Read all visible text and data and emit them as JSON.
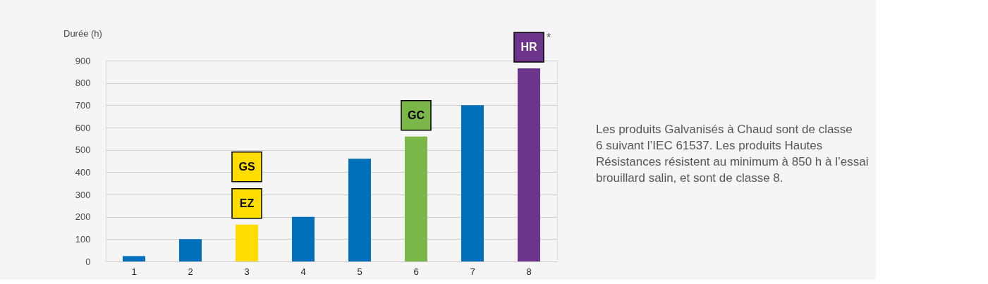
{
  "chart_data": {
    "type": "bar",
    "ylabel": "Durée (h)",
    "categories": [
      "1",
      "2",
      "3",
      "4",
      "5",
      "6",
      "7",
      "8"
    ],
    "values": [
      24,
      100,
      165,
      200,
      460,
      560,
      700,
      865
    ],
    "colors": [
      "#0070ba",
      "#0070ba",
      "#ffdd00",
      "#0070ba",
      "#0070ba",
      "#7ab648",
      "#0070ba",
      "#6c348b"
    ],
    "ylim": [
      0,
      900
    ],
    "yticks": [
      0,
      100,
      200,
      300,
      400,
      500,
      600,
      700,
      800,
      900
    ],
    "grid": "y",
    "annotations": [
      {
        "text": "EZ",
        "x": "3"
      },
      {
        "text": "GS",
        "x": "3"
      },
      {
        "text": "GC",
        "x": "6"
      },
      {
        "text": "HR",
        "x": "8"
      },
      "*",
      "Les produits Galvanisés à Chaud sont de classe\n6 suivant l’IEC 61537. Les produits Hautes\nRésistances résistent au minimum à 850 h à l’essai\nbrouillard salin, et sont de classe 8."
    ]
  }
}
